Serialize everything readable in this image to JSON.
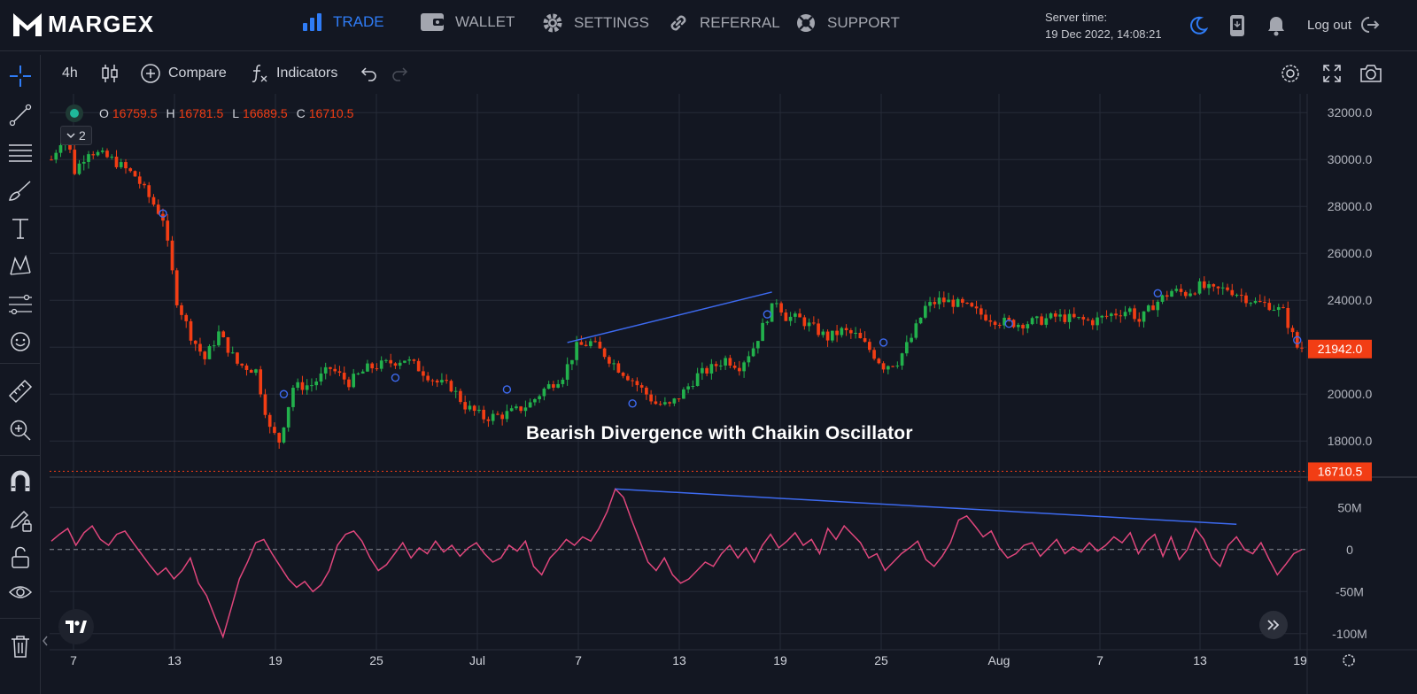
{
  "app": {
    "brand": "MARGEX"
  },
  "nav": [
    {
      "label": "TRADE",
      "icon": "bar-chart-icon",
      "active": true
    },
    {
      "label": "WALLET",
      "icon": "wallet-icon",
      "active": false
    },
    {
      "label": "SETTINGS",
      "icon": "gear-icon",
      "active": false
    },
    {
      "label": "REFERRAL",
      "icon": "link-icon",
      "active": false
    },
    {
      "label": "SUPPORT",
      "icon": "lifebuoy-icon",
      "active": false
    }
  ],
  "server": {
    "label": "Server time:",
    "time": "19 Dec 2022, 14:08:21"
  },
  "header": {
    "logout_label": "Log out"
  },
  "toolbar": {
    "interval": "4h",
    "compare_label": "Compare",
    "indicators_label": "Indicators"
  },
  "legend": {
    "o_label": "O",
    "o_value": "16759.5",
    "h_label": "H",
    "h_value": "16781.5",
    "l_label": "L",
    "l_value": "16689.5",
    "c_label": "C",
    "c_value": "16710.5",
    "collapsed_count": "2"
  },
  "caption": "Bearish Divergence with Chaikin Oscillator",
  "colors": {
    "accent": "#2f7cf6",
    "up": "#26a69a",
    "up_candle": "#22b14c",
    "down": "#f23d14",
    "osc": "#e0467c",
    "trend": "#3d6af0",
    "bg": "#131722"
  },
  "chart_data": [
    {
      "type": "candlestick",
      "title": "",
      "x_ticks": [
        "7",
        "13",
        "19",
        "25",
        "Jul",
        "7",
        "13",
        "19",
        "25",
        "Aug",
        "7",
        "13",
        "19"
      ],
      "y_ticks": [
        "32000.0",
        "30000.0",
        "28000.0",
        "26000.0",
        "24000.0",
        "22000.0",
        "20000.0",
        "18000.0"
      ],
      "ylim": [
        16500,
        32800
      ],
      "price_label_last": "21942.0",
      "price_label_current": "16710.5",
      "close_path": [
        [
          0,
          30000
        ],
        [
          3,
          31200
        ],
        [
          5,
          29500
        ],
        [
          8,
          30400
        ],
        [
          13,
          30000
        ],
        [
          18,
          29300
        ],
        [
          22,
          28100
        ],
        [
          24,
          27500
        ],
        [
          27,
          24000
        ],
        [
          30,
          22500
        ],
        [
          33,
          21500
        ],
        [
          36,
          22600
        ],
        [
          40,
          21300
        ],
        [
          44,
          21000
        ],
        [
          47,
          18500
        ],
        [
          49,
          18000
        ],
        [
          52,
          20300
        ],
        [
          56,
          20400
        ],
        [
          60,
          21100
        ],
        [
          64,
          20500
        ],
        [
          68,
          21100
        ],
        [
          72,
          21300
        ],
        [
          76,
          21500
        ],
        [
          79,
          21100
        ],
        [
          83,
          20500
        ],
        [
          86,
          20300
        ],
        [
          89,
          19500
        ],
        [
          93,
          19000
        ],
        [
          97,
          19100
        ],
        [
          100,
          19300
        ],
        [
          103,
          19600
        ],
        [
          106,
          20200
        ],
        [
          110,
          20800
        ],
        [
          113,
          22000
        ],
        [
          116,
          22200
        ],
        [
          119,
          21700
        ],
        [
          122,
          21100
        ],
        [
          125,
          20600
        ],
        [
          128,
          20000
        ],
        [
          130,
          19600
        ],
        [
          133,
          19500
        ],
        [
          136,
          20100
        ],
        [
          139,
          20800
        ],
        [
          142,
          21100
        ],
        [
          145,
          21500
        ],
        [
          148,
          21200
        ],
        [
          151,
          22000
        ],
        [
          154,
          23300
        ],
        [
          156,
          24000
        ],
        [
          158,
          23300
        ],
        [
          161,
          23200
        ],
        [
          164,
          22800
        ],
        [
          167,
          22400
        ],
        [
          170,
          22700
        ],
        [
          173,
          22500
        ],
        [
          176,
          21900
        ],
        [
          179,
          21200
        ],
        [
          182,
          21400
        ],
        [
          185,
          22400
        ],
        [
          188,
          23700
        ],
        [
          191,
          24000
        ],
        [
          194,
          23900
        ],
        [
          197,
          23700
        ],
        [
          200,
          23400
        ],
        [
          204,
          23100
        ],
        [
          208,
          23000
        ],
        [
          212,
          23100
        ],
        [
          216,
          23300
        ],
        [
          220,
          23200
        ],
        [
          224,
          23100
        ],
        [
          228,
          23400
        ],
        [
          232,
          23600
        ],
        [
          234,
          23100
        ],
        [
          237,
          23800
        ],
        [
          241,
          24400
        ],
        [
          244,
          24300
        ],
        [
          247,
          24600
        ],
        [
          250,
          24400
        ],
        [
          253,
          24500
        ],
        [
          256,
          24200
        ],
        [
          259,
          23900
        ],
        [
          262,
          23800
        ],
        [
          265,
          23500
        ],
        [
          268,
          22000
        ]
      ],
      "markers": [
        [
          24,
          27700
        ],
        [
          50,
          20000
        ],
        [
          74,
          20700
        ],
        [
          98,
          20200
        ],
        [
          125,
          19600
        ],
        [
          154,
          23400
        ],
        [
          179,
          22200
        ],
        [
          206,
          23000
        ],
        [
          238,
          24300
        ],
        [
          268,
          22300
        ]
      ],
      "trendline": [
        [
          111,
          22200
        ],
        [
          155,
          24350
        ]
      ]
    },
    {
      "type": "line",
      "title": "",
      "y_ticks": [
        "50M",
        "0",
        "-50M",
        "-100M"
      ],
      "ylim": [
        -115,
        85
      ],
      "series": [
        {
          "values": [
            10,
            18,
            25,
            5,
            20,
            28,
            12,
            5,
            18,
            22,
            8,
            -5,
            -18,
            -30,
            -22,
            -35,
            -25,
            -10,
            -40,
            -55,
            -80,
            -104,
            -70,
            -35,
            -15,
            8,
            12,
            -5,
            -20,
            -35,
            -45,
            -38,
            -50,
            -42,
            -25,
            5,
            18,
            22,
            10,
            -10,
            -25,
            -18,
            -5,
            8,
            -10,
            2,
            -5,
            10,
            -3,
            5,
            -8,
            2,
            8,
            -5,
            -15,
            -10,
            5,
            -2,
            10,
            -20,
            -30,
            -10,
            0,
            12,
            5,
            15,
            10,
            25,
            45,
            72,
            62,
            35,
            10,
            -15,
            -25,
            -10,
            -30,
            -40,
            -35,
            -25,
            -15,
            -20,
            -5,
            5,
            -10,
            2,
            -15,
            5,
            18,
            2,
            10,
            20,
            5,
            12,
            -5,
            25,
            12,
            28,
            18,
            8,
            -10,
            -5,
            -25,
            -15,
            -5,
            2,
            10,
            -12,
            -20,
            -8,
            8,
            35,
            40,
            28,
            15,
            22,
            2,
            -10,
            -5,
            5,
            8,
            -8,
            2,
            12,
            -5,
            3,
            -3,
            8,
            -2,
            5,
            15,
            8,
            20,
            -5,
            10,
            18,
            -8,
            15,
            -12,
            0,
            25,
            12,
            -10,
            -20,
            5,
            15,
            0,
            -5,
            8,
            -12,
            -30,
            -18,
            -5,
            0
          ]
        }
      ],
      "trendline": [
        [
          69,
          72
        ],
        [
          145,
          30
        ]
      ]
    }
  ]
}
